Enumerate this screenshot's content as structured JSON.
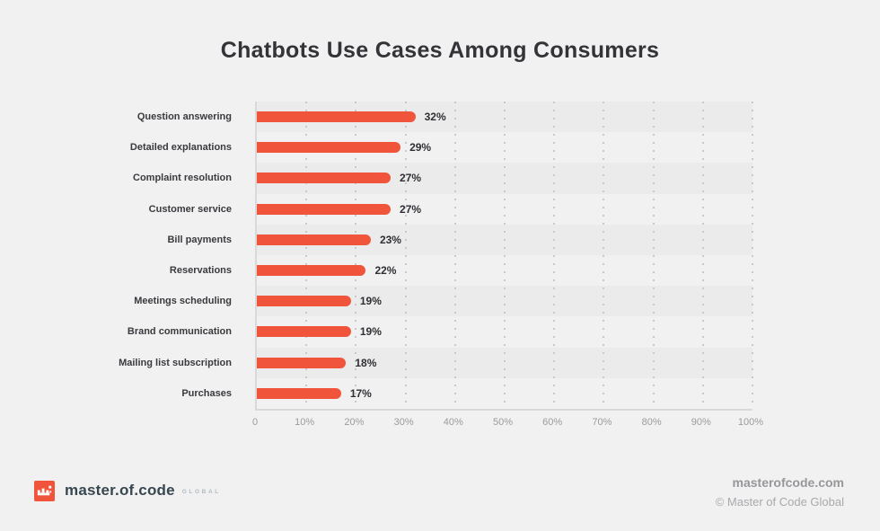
{
  "header": {
    "title": "Chatbots Use Cases Among Consumers"
  },
  "chart_data": {
    "type": "bar",
    "orientation": "horizontal",
    "title": "Chatbots Use Cases Among Consumers",
    "categories": [
      "Question answering",
      "Detailed explanations",
      "Complaint resolution",
      "Customer service",
      "Bill payments",
      "Reservations",
      "Meetings scheduling",
      "Brand communication",
      "Mailing list subscription",
      "Purchases"
    ],
    "values": [
      32,
      29,
      27,
      27,
      23,
      22,
      19,
      19,
      18,
      17
    ],
    "value_labels": [
      "32%",
      "29%",
      "27%",
      "27%",
      "23%",
      "22%",
      "19%",
      "19%",
      "18%",
      "17%"
    ],
    "unit": "%",
    "xlabel": "",
    "ylabel": "",
    "xlim": [
      0,
      100
    ],
    "x_ticks": [
      "0",
      "10%",
      "20%",
      "30%",
      "40%",
      "50%",
      "60%",
      "70%",
      "80%",
      "90%",
      "100%"
    ],
    "grid": "vertical-dotted",
    "legend": "none",
    "bar_color": "#f0553b",
    "band_color": "#ebebec"
  },
  "footer": {
    "logo_text": "master.of.code",
    "logo_suffix": "GLOBAL",
    "website": "masterofcode.com",
    "copyright": "© Master of Code Global"
  },
  "colors": {
    "background": "#f1f1f2",
    "title_text": "#333338",
    "axis_text": "#9b9b9d",
    "label_text": "#3a3a3e",
    "accent": "#f0553b"
  }
}
